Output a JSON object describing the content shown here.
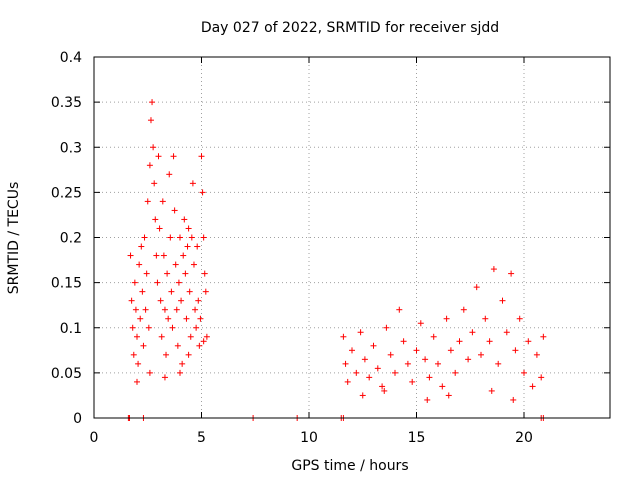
{
  "chart_data": {
    "type": "scatter",
    "title": "Day 027 of 2022, SRMTID for receiver sjdd",
    "xlabel": "GPS time / hours",
    "ylabel": "SRMTID / TECUs",
    "xlim": [
      0,
      24
    ],
    "ylim": [
      0,
      0.4
    ],
    "x_ticks": [
      0,
      5,
      10,
      15,
      20
    ],
    "x_tick_labels": [
      "0",
      "5",
      "10",
      "15",
      "20"
    ],
    "y_ticks": [
      0,
      0.05,
      0.1,
      0.15,
      0.2,
      0.25,
      0.3,
      0.35,
      0.4
    ],
    "y_tick_labels": [
      "0",
      "0.05",
      "0.1",
      "0.15",
      "0.2",
      "0.25",
      "0.3",
      "0.35",
      "0.4"
    ],
    "grid": true,
    "marker": "+",
    "color": "#ff0000",
    "series": [
      {
        "name": "SRMTID",
        "points": [
          [
            1.7,
            0.18
          ],
          [
            1.75,
            0.13
          ],
          [
            1.8,
            0.1
          ],
          [
            1.85,
            0.07
          ],
          [
            1.9,
            0.15
          ],
          [
            1.95,
            0.12
          ],
          [
            2.0,
            0.09
          ],
          [
            2.05,
            0.06
          ],
          [
            2.1,
            0.17
          ],
          [
            2.15,
            0.11
          ],
          [
            2.2,
            0.19
          ],
          [
            2.25,
            0.14
          ],
          [
            2.3,
            0.08
          ],
          [
            2.35,
            0.2
          ],
          [
            2.4,
            0.12
          ],
          [
            2.45,
            0.16
          ],
          [
            2.5,
            0.24
          ],
          [
            2.55,
            0.1
          ],
          [
            2.6,
            0.28
          ],
          [
            2.65,
            0.33
          ],
          [
            2.7,
            0.35
          ],
          [
            2.75,
            0.3
          ],
          [
            2.8,
            0.26
          ],
          [
            2.85,
            0.22
          ],
          [
            2.9,
            0.18
          ],
          [
            2.95,
            0.15
          ],
          [
            3.0,
            0.29
          ],
          [
            3.05,
            0.21
          ],
          [
            3.1,
            0.13
          ],
          [
            3.15,
            0.09
          ],
          [
            3.2,
            0.24
          ],
          [
            3.25,
            0.18
          ],
          [
            3.3,
            0.12
          ],
          [
            3.35,
            0.07
          ],
          [
            3.4,
            0.16
          ],
          [
            3.45,
            0.11
          ],
          [
            3.5,
            0.27
          ],
          [
            3.55,
            0.2
          ],
          [
            3.6,
            0.14
          ],
          [
            3.65,
            0.1
          ],
          [
            3.7,
            0.29
          ],
          [
            3.75,
            0.23
          ],
          [
            3.8,
            0.17
          ],
          [
            3.85,
            0.12
          ],
          [
            3.9,
            0.08
          ],
          [
            3.95,
            0.15
          ],
          [
            4.0,
            0.2
          ],
          [
            4.05,
            0.13
          ],
          [
            4.1,
            0.06
          ],
          [
            4.15,
            0.18
          ],
          [
            4.2,
            0.22
          ],
          [
            4.25,
            0.16
          ],
          [
            4.3,
            0.11
          ],
          [
            4.35,
            0.19
          ],
          [
            4.4,
            0.21
          ],
          [
            4.45,
            0.14
          ],
          [
            4.5,
            0.09
          ],
          [
            4.55,
            0.2
          ],
          [
            4.6,
            0.26
          ],
          [
            4.65,
            0.17
          ],
          [
            4.7,
            0.12
          ],
          [
            4.75,
            0.1
          ],
          [
            4.8,
            0.19
          ],
          [
            4.85,
            0.13
          ],
          [
            4.9,
            0.08
          ],
          [
            4.95,
            0.11
          ],
          [
            5.0,
            0.29
          ],
          [
            5.05,
            0.25
          ],
          [
            5.1,
            0.2
          ],
          [
            5.15,
            0.16
          ],
          [
            5.2,
            0.14
          ],
          [
            5.25,
            0.09
          ],
          [
            2.0,
            0.04
          ],
          [
            2.6,
            0.05
          ],
          [
            3.3,
            0.045
          ],
          [
            4.0,
            0.05
          ],
          [
            4.4,
            0.07
          ],
          [
            5.1,
            0.085
          ],
          [
            11.6,
            0.09
          ],
          [
            11.7,
            0.06
          ],
          [
            11.8,
            0.04
          ],
          [
            12.0,
            0.075
          ],
          [
            12.2,
            0.05
          ],
          [
            12.4,
            0.095
          ],
          [
            12.6,
            0.065
          ],
          [
            12.8,
            0.045
          ],
          [
            13.0,
            0.08
          ],
          [
            13.2,
            0.055
          ],
          [
            13.4,
            0.035
          ],
          [
            13.6,
            0.1
          ],
          [
            13.8,
            0.07
          ],
          [
            14.0,
            0.05
          ],
          [
            14.2,
            0.12
          ],
          [
            14.4,
            0.085
          ],
          [
            14.6,
            0.06
          ],
          [
            14.8,
            0.04
          ],
          [
            15.0,
            0.075
          ],
          [
            15.2,
            0.105
          ],
          [
            15.4,
            0.065
          ],
          [
            15.6,
            0.045
          ],
          [
            15.8,
            0.09
          ],
          [
            16.0,
            0.06
          ],
          [
            16.2,
            0.035
          ],
          [
            16.4,
            0.11
          ],
          [
            16.6,
            0.075
          ],
          [
            16.8,
            0.05
          ],
          [
            17.0,
            0.085
          ],
          [
            17.2,
            0.12
          ],
          [
            17.4,
            0.065
          ],
          [
            17.6,
            0.095
          ],
          [
            17.8,
            0.145
          ],
          [
            18.0,
            0.07
          ],
          [
            18.2,
            0.11
          ],
          [
            18.4,
            0.085
          ],
          [
            18.6,
            0.165
          ],
          [
            18.8,
            0.06
          ],
          [
            19.0,
            0.13
          ],
          [
            19.2,
            0.095
          ],
          [
            19.4,
            0.16
          ],
          [
            19.6,
            0.075
          ],
          [
            19.8,
            0.11
          ],
          [
            20.0,
            0.05
          ],
          [
            20.2,
            0.085
          ],
          [
            20.4,
            0.035
          ],
          [
            20.6,
            0.07
          ],
          [
            20.8,
            0.045
          ],
          [
            20.9,
            0.09
          ],
          [
            12.5,
            0.025
          ],
          [
            13.5,
            0.03
          ],
          [
            15.5,
            0.02
          ],
          [
            16.5,
            0.025
          ],
          [
            18.5,
            0.03
          ],
          [
            19.5,
            0.02
          ],
          [
            1.6,
            0.0
          ],
          [
            1.65,
            0.0
          ],
          [
            2.3,
            0.0
          ],
          [
            7.4,
            0.0
          ],
          [
            9.45,
            0.0
          ],
          [
            11.5,
            0.0
          ],
          [
            11.6,
            0.0
          ],
          [
            20.8,
            0.0
          ],
          [
            20.9,
            0.0
          ]
        ]
      }
    ]
  }
}
